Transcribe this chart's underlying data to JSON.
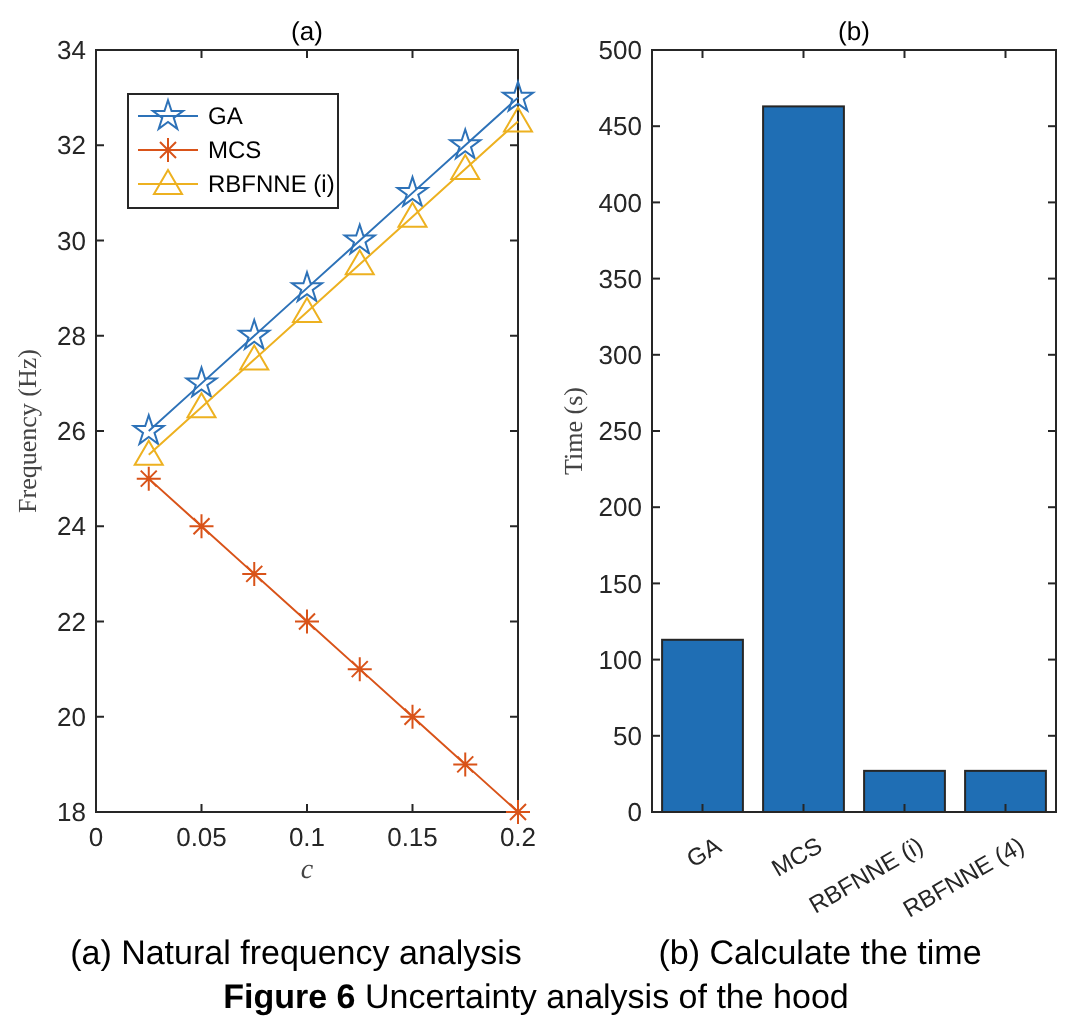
{
  "chart_data": [
    {
      "type": "line",
      "title": "(a)",
      "xlabel": "c",
      "ylabel": "Frequency (Hz)",
      "x": [
        0.025,
        0.05,
        0.075,
        0.1,
        0.125,
        0.15,
        0.175,
        0.2
      ],
      "xlim": [
        0,
        0.2
      ],
      "xticks": [
        0,
        0.05,
        0.1,
        0.15,
        0.2
      ],
      "ylim": [
        18,
        34
      ],
      "yticks": [
        18,
        20,
        22,
        24,
        26,
        28,
        30,
        32,
        34
      ],
      "legend": "top left",
      "series": [
        {
          "name": "GA",
          "color": "#2d72b8",
          "marker": "star",
          "values": [
            26,
            27,
            28,
            29,
            30,
            31,
            32,
            33
          ]
        },
        {
          "name": "MCS",
          "color": "#d95319",
          "marker": "cross",
          "values": [
            25,
            24,
            23,
            22,
            21,
            20,
            19,
            18
          ]
        },
        {
          "name": "RBFNNE (i)",
          "color": "#edb120",
          "marker": "triangle",
          "values": [
            25.5,
            26.5,
            27.5,
            28.5,
            29.5,
            30.5,
            31.5,
            32.5
          ]
        }
      ],
      "annotations": [
        "(a) Natural frequency analysis"
      ]
    },
    {
      "type": "bar",
      "title": "(b)",
      "ylabel": "Time (s)",
      "categories": [
        "GA",
        "MCS",
        "RBFNNE (i)",
        "RBFNNE (4)"
      ],
      "values": [
        113,
        463,
        27,
        27
      ],
      "color": "#1f6eb4",
      "ylim": [
        0,
        500
      ],
      "yticks": [
        0,
        50,
        100,
        150,
        200,
        250,
        300,
        350,
        400,
        450,
        500
      ],
      "annotations": [
        "(b) Calculate the time",
        "Figure 6 Uncertainty analysis of the hood"
      ]
    }
  ]
}
